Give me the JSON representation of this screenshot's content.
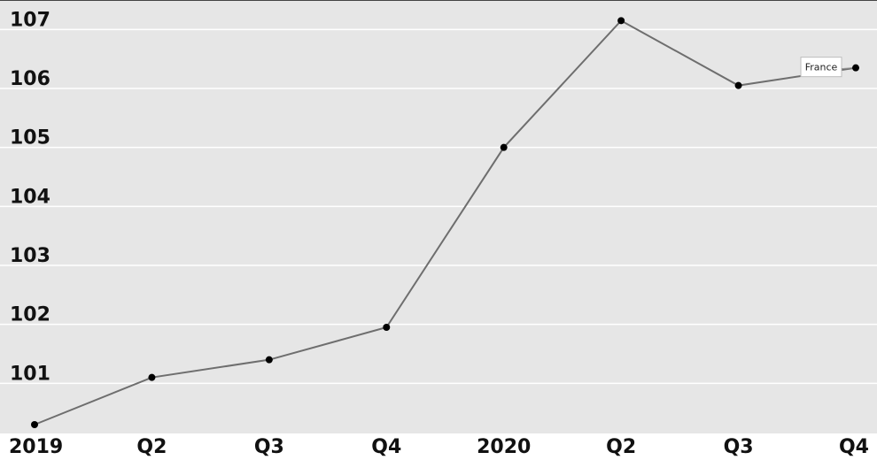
{
  "chart_data": {
    "type": "line",
    "categories": [
      "2019",
      "Q2",
      "Q3",
      "Q4",
      "2020",
      "Q2",
      "Q3",
      "Q4"
    ],
    "series": [
      {
        "name": "France",
        "values": [
          100.3,
          101.1,
          101.4,
          101.95,
          105.0,
          107.15,
          106.05,
          106.35
        ]
      }
    ],
    "y_ticks": [
      "101",
      "102",
      "103",
      "104",
      "105",
      "106",
      "107"
    ],
    "ylim": [
      100.27,
      107.35
    ],
    "grid": true,
    "legend": "inline label near last point",
    "colors": {
      "plot_background": "#e6e6e6",
      "gridline": "#ffffff",
      "line": "#6e6e6e",
      "marker": "#000000",
      "label_box": "#ffffff"
    }
  }
}
